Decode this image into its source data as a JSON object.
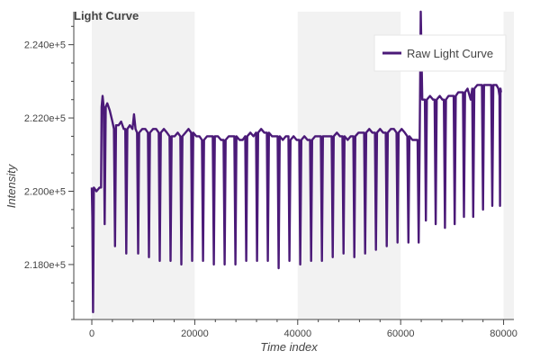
{
  "chart_data": {
    "type": "line",
    "title": "Light Curve",
    "xlabel": "Time index",
    "ylabel": "Intensity",
    "xlim": [
      -3500,
      82000
    ],
    "ylim": [
      216500,
      224900
    ],
    "x_ticks": [
      0,
      20000,
      40000,
      60000,
      80000
    ],
    "x_tick_labels": [
      "0",
      "20000",
      "40000",
      "60000",
      "80000"
    ],
    "y_ticks": [
      218000,
      220000,
      222000,
      224000
    ],
    "y_tick_labels": [
      "2.180e+5",
      "2.200e+5",
      "2.220e+5",
      "2.240e+5"
    ],
    "shaded_bands": [
      [
        0,
        20000
      ],
      [
        40000,
        60000
      ],
      [
        80000,
        82000
      ]
    ],
    "band_color": "#f2f2f2",
    "legend_position": "top-right",
    "series": [
      {
        "name": "Raw Light Curve",
        "color": "#4b1a78",
        "points": [
          [
            0,
            220100
          ],
          [
            100,
            219300
          ],
          [
            250,
            216700
          ],
          [
            400,
            220100
          ],
          [
            900,
            220000
          ],
          [
            1500,
            220100
          ],
          [
            1800,
            220100
          ],
          [
            1900,
            222300
          ],
          [
            2100,
            222600
          ],
          [
            2300,
            222300
          ],
          [
            2500,
            219100
          ],
          [
            2700,
            222300
          ],
          [
            3000,
            222400
          ],
          [
            3500,
            222200
          ],
          [
            4000,
            221900
          ],
          [
            4300,
            221700
          ],
          [
            4500,
            218500
          ],
          [
            4700,
            221800
          ],
          [
            5200,
            221800
          ],
          [
            5700,
            221900
          ],
          [
            6200,
            221700
          ],
          [
            6500,
            221700
          ],
          [
            6700,
            218300
          ],
          [
            6900,
            221700
          ],
          [
            7400,
            221800
          ],
          [
            7900,
            221700
          ],
          [
            8200,
            222100
          ],
          [
            8500,
            221700
          ],
          [
            8800,
            221600
          ],
          [
            9000,
            218300
          ],
          [
            9200,
            221600
          ],
          [
            9800,
            221700
          ],
          [
            10400,
            221700
          ],
          [
            10900,
            221600
          ],
          [
            11100,
            218200
          ],
          [
            11300,
            221600
          ],
          [
            11900,
            221700
          ],
          [
            12500,
            221700
          ],
          [
            13000,
            221600
          ],
          [
            13200,
            218100
          ],
          [
            13400,
            221600
          ],
          [
            14000,
            221700
          ],
          [
            14600,
            221600
          ],
          [
            15100,
            221500
          ],
          [
            15300,
            218100
          ],
          [
            15500,
            221500
          ],
          [
            16100,
            221500
          ],
          [
            16700,
            221600
          ],
          [
            17200,
            221500
          ],
          [
            17400,
            218000
          ],
          [
            17600,
            221500
          ],
          [
            18200,
            221600
          ],
          [
            18800,
            221700
          ],
          [
            19300,
            221600
          ],
          [
            19500,
            218100
          ],
          [
            19700,
            221600
          ],
          [
            20300,
            221500
          ],
          [
            20900,
            221500
          ],
          [
            21400,
            221400
          ],
          [
            21600,
            218100
          ],
          [
            21800,
            221400
          ],
          [
            22400,
            221500
          ],
          [
            23000,
            221500
          ],
          [
            23500,
            221500
          ],
          [
            23700,
            218000
          ],
          [
            23900,
            221500
          ],
          [
            24500,
            221500
          ],
          [
            25100,
            221400
          ],
          [
            25600,
            221400
          ],
          [
            25800,
            218000
          ],
          [
            26000,
            221400
          ],
          [
            26600,
            221500
          ],
          [
            27200,
            221500
          ],
          [
            27700,
            221500
          ],
          [
            27900,
            218000
          ],
          [
            28100,
            221500
          ],
          [
            28700,
            221400
          ],
          [
            29300,
            221400
          ],
          [
            29800,
            221500
          ],
          [
            30000,
            218100
          ],
          [
            30200,
            221500
          ],
          [
            30800,
            221600
          ],
          [
            31400,
            221500
          ],
          [
            31900,
            221600
          ],
          [
            32100,
            218100
          ],
          [
            32300,
            221600
          ],
          [
            32900,
            221700
          ],
          [
            33500,
            221600
          ],
          [
            34000,
            221600
          ],
          [
            34200,
            218100
          ],
          [
            34400,
            221600
          ],
          [
            35000,
            221500
          ],
          [
            35600,
            221500
          ],
          [
            36100,
            221500
          ],
          [
            36300,
            217900
          ],
          [
            36500,
            221500
          ],
          [
            37100,
            221400
          ],
          [
            37700,
            221500
          ],
          [
            38200,
            221500
          ],
          [
            38400,
            218100
          ],
          [
            38600,
            221400
          ],
          [
            39200,
            221500
          ],
          [
            39800,
            221400
          ],
          [
            40300,
            221400
          ],
          [
            40500,
            218000
          ],
          [
            40700,
            221400
          ],
          [
            41300,
            221500
          ],
          [
            41900,
            221400
          ],
          [
            42400,
            221400
          ],
          [
            42600,
            218100
          ],
          [
            42800,
            221400
          ],
          [
            43400,
            221500
          ],
          [
            44000,
            221500
          ],
          [
            44500,
            221500
          ],
          [
            44700,
            218100
          ],
          [
            44900,
            221500
          ],
          [
            45500,
            221500
          ],
          [
            46100,
            221500
          ],
          [
            46600,
            221500
          ],
          [
            46800,
            218200
          ],
          [
            47000,
            221500
          ],
          [
            47600,
            221600
          ],
          [
            48200,
            221500
          ],
          [
            48700,
            221500
          ],
          [
            48900,
            218300
          ],
          [
            49100,
            221500
          ],
          [
            49700,
            221400
          ],
          [
            50300,
            221500
          ],
          [
            50800,
            221500
          ],
          [
            51000,
            218200
          ],
          [
            51200,
            221500
          ],
          [
            51800,
            221600
          ],
          [
            52400,
            221600
          ],
          [
            52900,
            221600
          ],
          [
            53100,
            218300
          ],
          [
            53300,
            221600
          ],
          [
            53900,
            221700
          ],
          [
            54500,
            221600
          ],
          [
            55000,
            221600
          ],
          [
            55200,
            218400
          ],
          [
            55400,
            221600
          ],
          [
            56000,
            221700
          ],
          [
            56600,
            221600
          ],
          [
            57100,
            221600
          ],
          [
            57300,
            218500
          ],
          [
            57500,
            221600
          ],
          [
            58100,
            221700
          ],
          [
            58700,
            221700
          ],
          [
            59200,
            221600
          ],
          [
            59400,
            218600
          ],
          [
            59600,
            221600
          ],
          [
            60200,
            221700
          ],
          [
            60800,
            221600
          ],
          [
            61300,
            221500
          ],
          [
            61500,
            218600
          ],
          [
            61700,
            221500
          ],
          [
            62300,
            221400
          ],
          [
            62900,
            221400
          ],
          [
            63300,
            221400
          ],
          [
            63500,
            218600
          ],
          [
            63700,
            221400
          ],
          [
            63900,
            224900
          ],
          [
            64200,
            222500
          ],
          [
            64700,
            222500
          ],
          [
            64900,
            219200
          ],
          [
            65100,
            222500
          ],
          [
            65700,
            222600
          ],
          [
            66300,
            222500
          ],
          [
            66600,
            222500
          ],
          [
            66800,
            219100
          ],
          [
            67000,
            222500
          ],
          [
            67600,
            222600
          ],
          [
            68100,
            222500
          ],
          [
            68400,
            222500
          ],
          [
            68600,
            219000
          ],
          [
            68800,
            222500
          ],
          [
            69300,
            222600
          ],
          [
            69900,
            222600
          ],
          [
            70300,
            222600
          ],
          [
            70500,
            219100
          ],
          [
            70700,
            222600
          ],
          [
            71200,
            222700
          ],
          [
            71800,
            222700
          ],
          [
            72100,
            222700
          ],
          [
            72300,
            219300
          ],
          [
            72500,
            222700
          ],
          [
            73000,
            222800
          ],
          [
            73600,
            222500
          ],
          [
            73900,
            222800
          ],
          [
            74100,
            219300
          ],
          [
            74300,
            222800
          ],
          [
            74900,
            222900
          ],
          [
            75400,
            222900
          ],
          [
            75800,
            222900
          ],
          [
            76000,
            219500
          ],
          [
            76200,
            222900
          ],
          [
            76700,
            222900
          ],
          [
            77300,
            222900
          ],
          [
            77600,
            222900
          ],
          [
            77800,
            219600
          ],
          [
            78000,
            222900
          ],
          [
            78600,
            222900
          ],
          [
            79000,
            222800
          ],
          [
            79200,
            222600
          ],
          [
            79300,
            219600
          ],
          [
            79400,
            222800
          ],
          [
            79500,
            222700
          ]
        ]
      }
    ]
  }
}
